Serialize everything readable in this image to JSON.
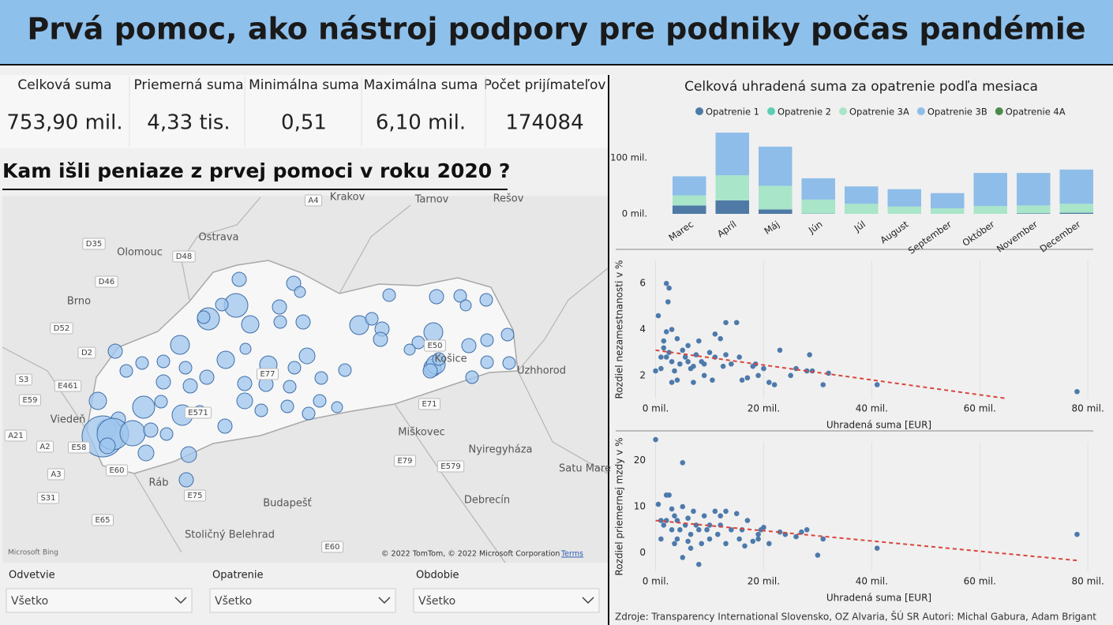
{
  "header": {
    "title": "Prvá pomoc, ako nástroj podpory pre podniky počas pandémie"
  },
  "kpis": [
    {
      "label": "Celková suma",
      "value": "753,90 mil."
    },
    {
      "label": "Priemerná suma",
      "value": "4,33 tis."
    },
    {
      "label": "Minimálna suma",
      "value": "0,51"
    },
    {
      "label": "Maximálna suma",
      "value": "6,10 mil."
    },
    {
      "label": "Počet prijímateľov",
      "value": "174084"
    }
  ],
  "map": {
    "title": "Kam išli peniaze z prvej pomoci v roku 2020 ?",
    "places": [
      "Krakov",
      "Tarnov",
      "Rešov",
      "Ostrava",
      "Olomouc",
      "Brno",
      "Viedeň",
      "Košice",
      "Uzhhorod",
      "Miškovec",
      "Nyiregyháza",
      "Satu Mare",
      "Budapešť",
      "Debrecín",
      "Ráb",
      "Stoličný Belehrad"
    ],
    "roads": [
      "A4",
      "D35",
      "D48",
      "D46",
      "D52",
      "D2",
      "S3",
      "E461",
      "E59",
      "A21",
      "A2",
      "E58",
      "A3",
      "S31",
      "E65",
      "E60",
      "E75",
      "E571",
      "E77",
      "E50",
      "E71",
      "E79",
      "E579",
      "E60"
    ],
    "brand": "Microsoft Bing",
    "attribution": "© 2022 TomTom, © 2022 Microsoft Corporation",
    "terms": "Terms"
  },
  "filters": [
    {
      "label": "Odvetvie",
      "value": "Všetko"
    },
    {
      "label": "Opatrenie",
      "value": "Všetko"
    },
    {
      "label": "Obdobie",
      "value": "Všetko"
    }
  ],
  "chart_data": [
    {
      "type": "stacked_bar",
      "title": "Celková uhradená suma za opatrenie podľa mesiaca",
      "categories": [
        "Marec",
        "Apríl",
        "Máj",
        "Jún",
        "Júl",
        "August",
        "September",
        "Október",
        "November",
        "December"
      ],
      "series": [
        {
          "name": "Opatrenie 1",
          "color": "#4f7aa6",
          "values": [
            15,
            24,
            8,
            0.5,
            0,
            0,
            0,
            0,
            1,
            2
          ]
        },
        {
          "name": "Opatrenie 2",
          "color": "#5ccfb4",
          "values": [
            0,
            0,
            0,
            0,
            0,
            0,
            0,
            0,
            0,
            0
          ]
        },
        {
          "name": "Opatrenie 3A",
          "color": "#a9e5c9",
          "values": [
            18,
            45,
            42,
            25,
            18,
            13,
            10,
            14,
            14,
            16
          ]
        },
        {
          "name": "Opatrenie 3B",
          "color": "#8ebde9",
          "values": [
            34,
            76,
            70,
            38,
            31,
            31,
            27,
            59,
            58,
            61
          ]
        },
        {
          "name": "Opatrenie 4A",
          "color": "#4c8a4c",
          "values": [
            0,
            0,
            0,
            0,
            0,
            0,
            0,
            0,
            0,
            0
          ]
        }
      ],
      "ylim": [
        0,
        150
      ],
      "yticks": [
        {
          "value": 0,
          "label": "0 mil."
        },
        {
          "value": 100,
          "label": "100 mil."
        }
      ]
    },
    {
      "type": "scatter",
      "x_label": "Uhradená suma [EUR]",
      "y_label": "Rozdiel nezamestnanosti v %",
      "color": "#4d7aab",
      "x": [
        0,
        0.5,
        1,
        1.5,
        2,
        2.3,
        2.5,
        1.5,
        2,
        3,
        2.5,
        3,
        3.5,
        4,
        4.5,
        5,
        5.5,
        6,
        6.5,
        7,
        7.5,
        8,
        8.5,
        9,
        10,
        10.5,
        11,
        12,
        12.5,
        13,
        14,
        15,
        15.5,
        16,
        17,
        18,
        19,
        20,
        21,
        22,
        23,
        25,
        26,
        28,
        28.5,
        29,
        31,
        32,
        41,
        78,
        1,
        3,
        2,
        4,
        6,
        7,
        9,
        11,
        13,
        18.5
      ],
      "values": [
        2.2,
        4.6,
        2.8,
        3.2,
        6.0,
        5.2,
        5.8,
        3.5,
        3.9,
        4.0,
        3.0,
        2.6,
        2.2,
        1.8,
        2.5,
        3.1,
        2.8,
        3.3,
        2.3,
        1.7,
        2.9,
        3.5,
        2.6,
        2.0,
        3.0,
        1.8,
        2.8,
        3.6,
        2.4,
        4.3,
        2.5,
        4.3,
        2.8,
        1.8,
        1.9,
        2.4,
        2.0,
        2.3,
        1.7,
        1.6,
        3.1,
        2.0,
        2.3,
        2.2,
        2.9,
        2.2,
        1.6,
        2.1,
        1.6,
        1.3,
        2.3,
        1.7,
        2.8,
        3.6,
        2.6,
        2.4,
        2.5,
        3.8,
        2.9,
        2.5
      ],
      "trend": {
        "color": "#d9453b",
        "x": [
          0,
          65
        ],
        "values": [
          3.1,
          1.0
        ]
      },
      "xlim": [
        -3,
        81
      ],
      "ylim": [
        1,
        7
      ],
      "xticks": [
        {
          "value": 0,
          "label": "0 mil."
        },
        {
          "value": 20,
          "label": "20 mil."
        },
        {
          "value": 40,
          "label": "40 mil."
        },
        {
          "value": 60,
          "label": "60 mil."
        },
        {
          "value": 80,
          "label": "80 mil."
        }
      ],
      "yticks": [
        2,
        4,
        6
      ],
      "grid": true
    },
    {
      "type": "scatter",
      "x_label": "Uhradená suma [EUR]",
      "y_label": "Rozdiel priemernej mzdy v %",
      "color": "#4d7aab",
      "x": [
        0,
        5,
        0.5,
        1,
        1.5,
        2,
        2.5,
        3,
        3,
        3.5,
        4,
        4,
        4.5,
        5,
        5,
        5.5,
        6,
        6.5,
        6.5,
        7,
        7.5,
        8,
        8.5,
        9,
        9.5,
        10,
        10,
        11,
        11.5,
        12,
        13,
        13,
        14,
        15,
        15.5,
        16,
        17,
        18,
        19,
        19.5,
        20,
        21,
        23,
        24,
        26,
        27,
        28,
        30,
        31,
        41,
        78,
        1,
        2,
        3.5,
        6,
        8,
        12,
        16.5,
        19
      ],
      "values": [
        24.5,
        19.5,
        10.5,
        7,
        6,
        12.5,
        12.5,
        9.5,
        5,
        8,
        3,
        7,
        5,
        10,
        -1,
        6,
        7.5,
        4,
        1,
        9,
        6,
        -2.5,
        2,
        8,
        5,
        6,
        3,
        9,
        4,
        6,
        2,
        9,
        5,
        8.5,
        3,
        5,
        7,
        2.5,
        3,
        5,
        5.5,
        2,
        4.5,
        4,
        3.5,
        4.5,
        5,
        -0.5,
        3,
        1,
        4,
        3,
        7,
        2,
        2.5,
        5,
        8,
        1.5,
        4
      ],
      "trend": {
        "color": "#d9453b",
        "x": [
          0,
          78.5
        ],
        "values": [
          7.0,
          -1.7
        ]
      },
      "xlim": [
        -3,
        81
      ],
      "ylim": [
        -4,
        24
      ],
      "xticks": [
        {
          "value": 0,
          "label": "0 mil."
        },
        {
          "value": 20,
          "label": "20 mil."
        },
        {
          "value": 40,
          "label": "40 mil."
        },
        {
          "value": 60,
          "label": "60 mil."
        },
        {
          "value": 80,
          "label": "80 mil."
        }
      ],
      "yticks": [
        0,
        10,
        20
      ],
      "grid": true
    }
  ],
  "footer": "Zdroje: Transparency International Slovensko, OZ Alvaria, ŠÚ SR Autori: Michal Gabura, Adam Brigant"
}
